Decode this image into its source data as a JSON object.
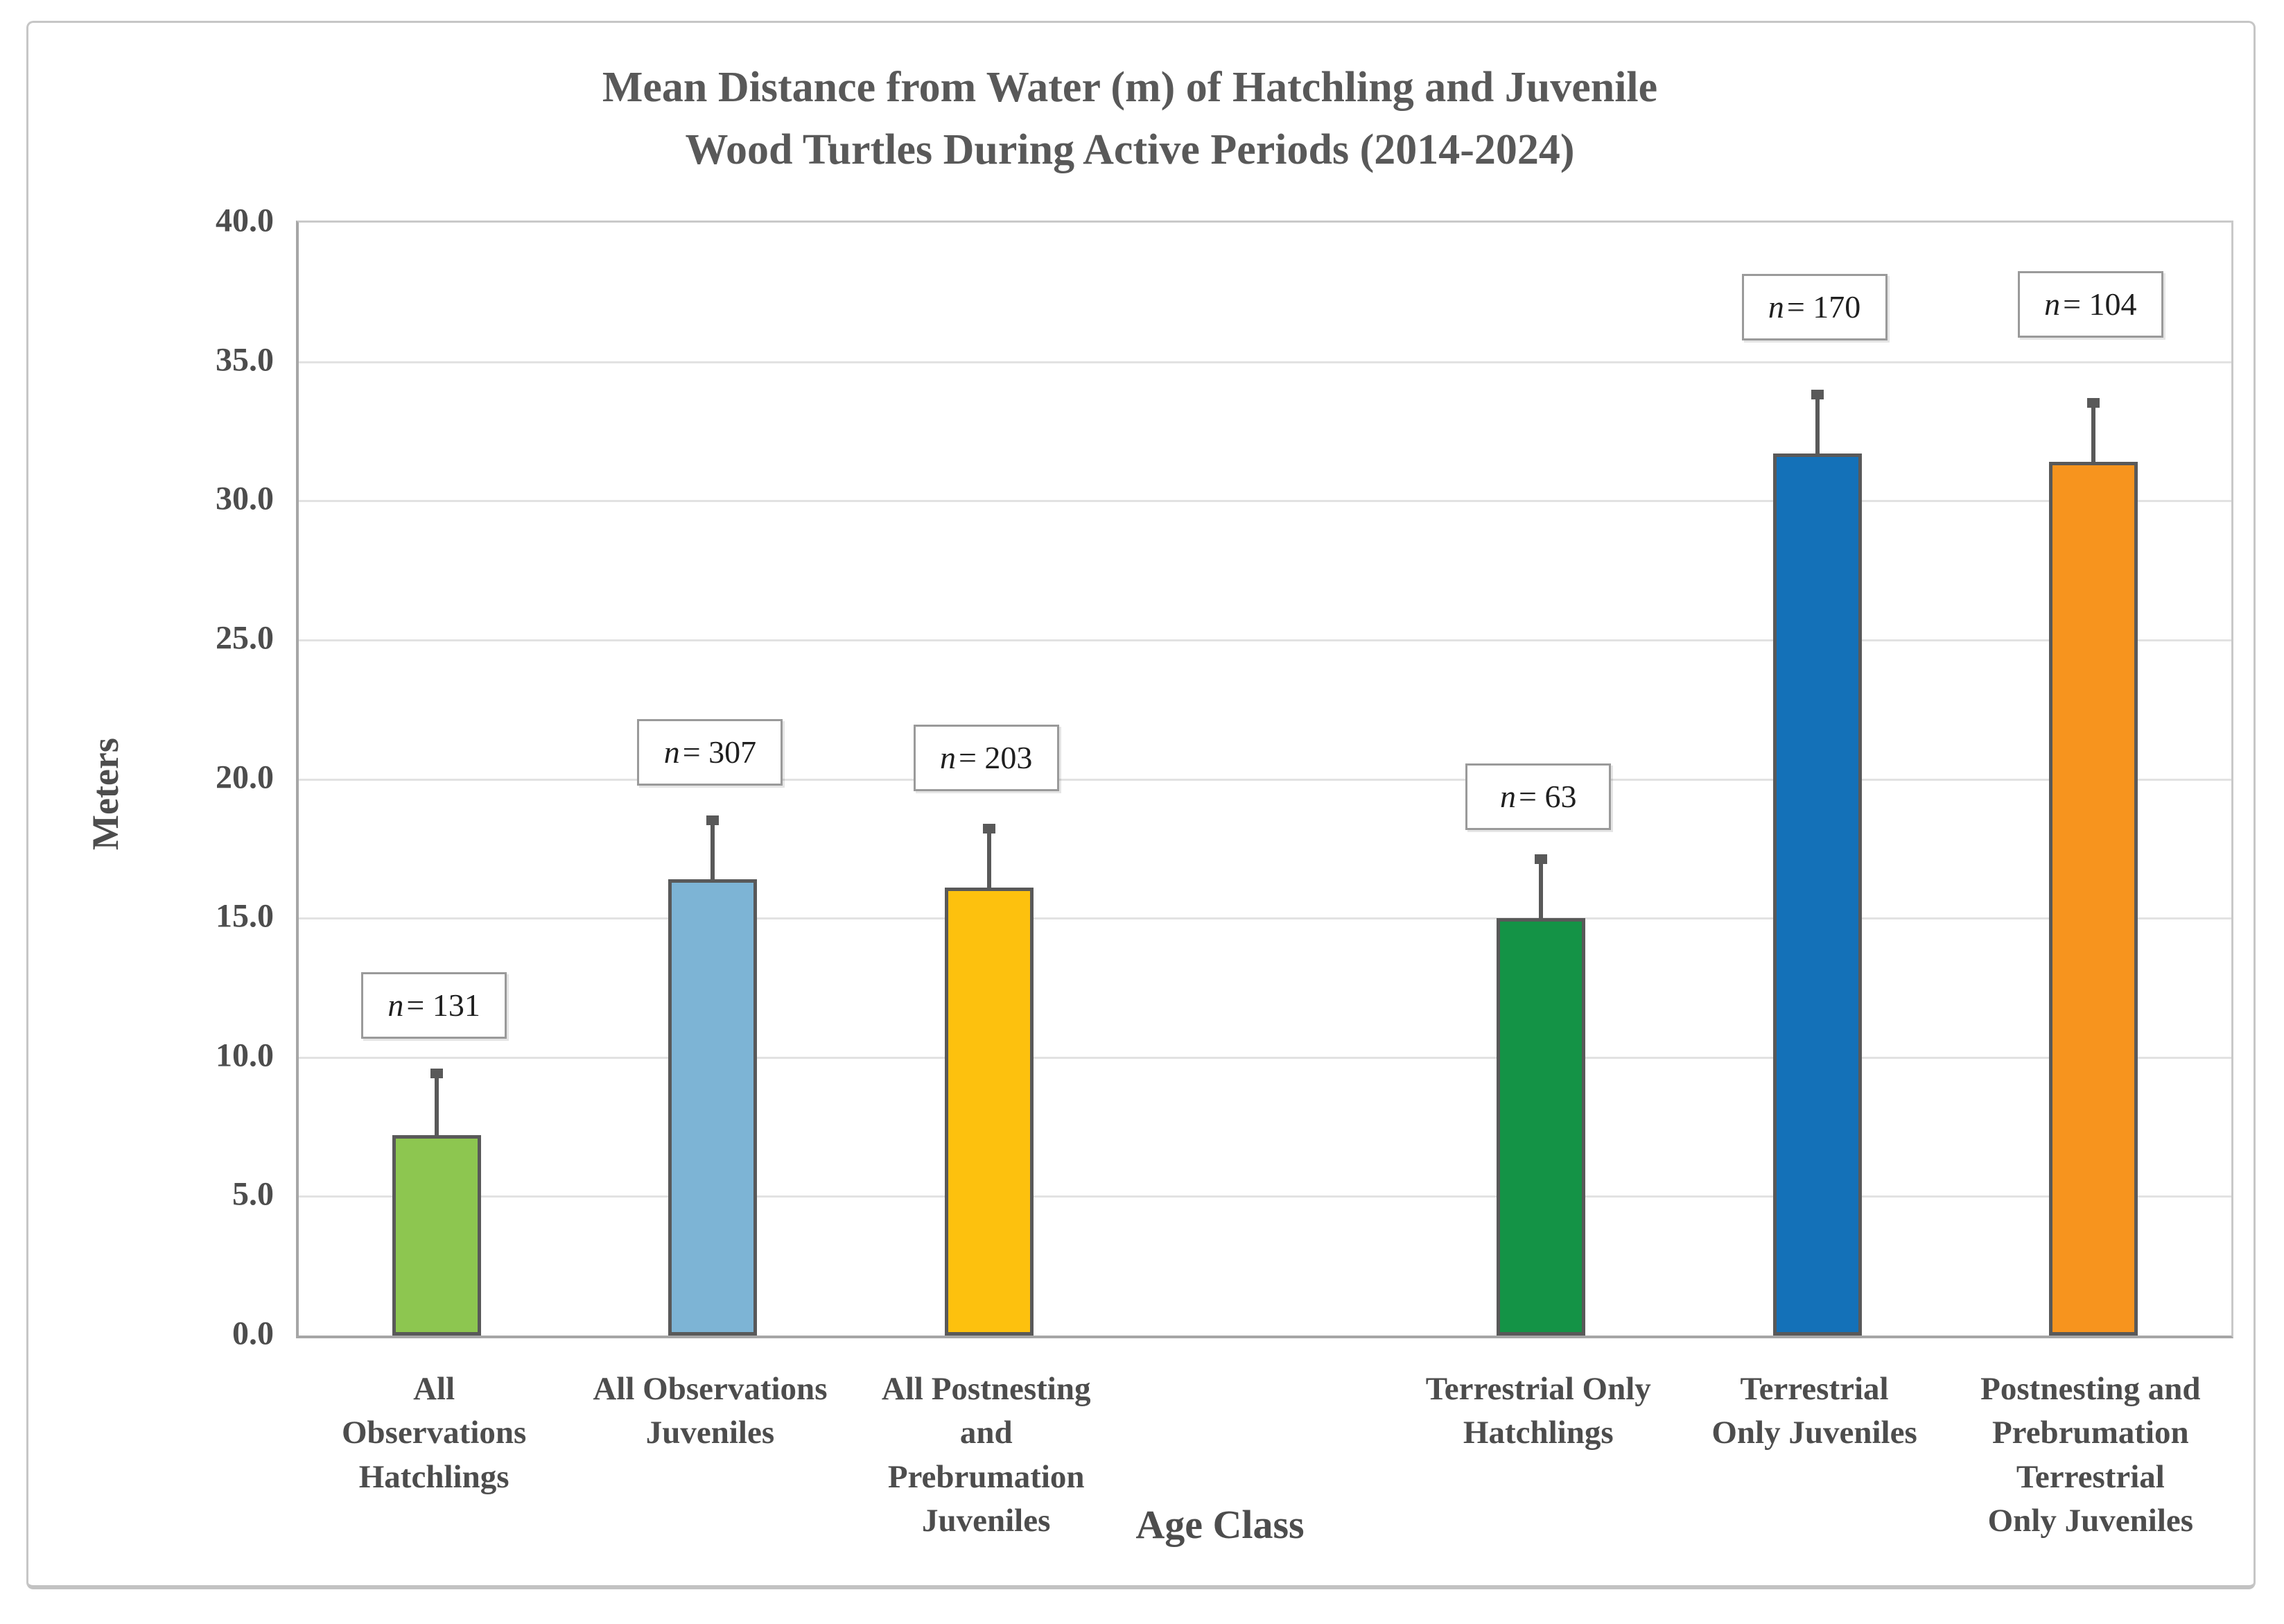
{
  "chart_data": {
    "type": "bar",
    "title": "Mean Distance from Water (m) of Hatchling and Juvenile\nWood Turtles During Active Periods (2014-2024)",
    "xlabel": "Age Class",
    "ylabel": "Meters",
    "ylim": [
      0.0,
      40.0
    ],
    "ytick_step": 5.0,
    "ytick_labels": [
      "0.0",
      "5.0",
      "10.0",
      "15.0",
      "20.0",
      "25.0",
      "30.0",
      "35.0",
      "40.0"
    ],
    "grid": true,
    "legend": "none",
    "categories": [
      "All\nObservations\nHatchlings",
      "All Observations\nJuveniles",
      "All Postnesting\nand\nPrebrumation\nJuveniles",
      "Terrestrial Only\nHatchlings",
      "Terrestrial\nOnly Juveniles",
      "Postnesting and\nPrebrumation\nTerrestrial\nOnly Juveniles"
    ],
    "values": [
      7.2,
      16.4,
      16.1,
      15.0,
      31.7,
      31.4
    ],
    "error_upper": [
      2.3,
      2.2,
      2.2,
      2.2,
      2.2,
      2.2
    ],
    "n_prefix": "n",
    "n_values": [
      131,
      307,
      203,
      63,
      170,
      104
    ],
    "n_label_bottom_m": [
      10.6,
      19.7,
      19.5,
      18.1,
      35.7,
      35.8
    ],
    "slot_index": [
      0,
      1,
      2,
      4,
      5,
      6
    ],
    "total_slots": 7,
    "bar_colors": [
      "#8dc650",
      "#7db4d5",
      "#fdc10e",
      "#149346",
      "#1471b8",
      "#f7941e"
    ],
    "bar_stroke_color": "#595959",
    "error_bar_color": "#595959",
    "gridline_color": "#e2e2e2",
    "axis_line_color": "#a6a6a6",
    "text_color": "#595959"
  }
}
